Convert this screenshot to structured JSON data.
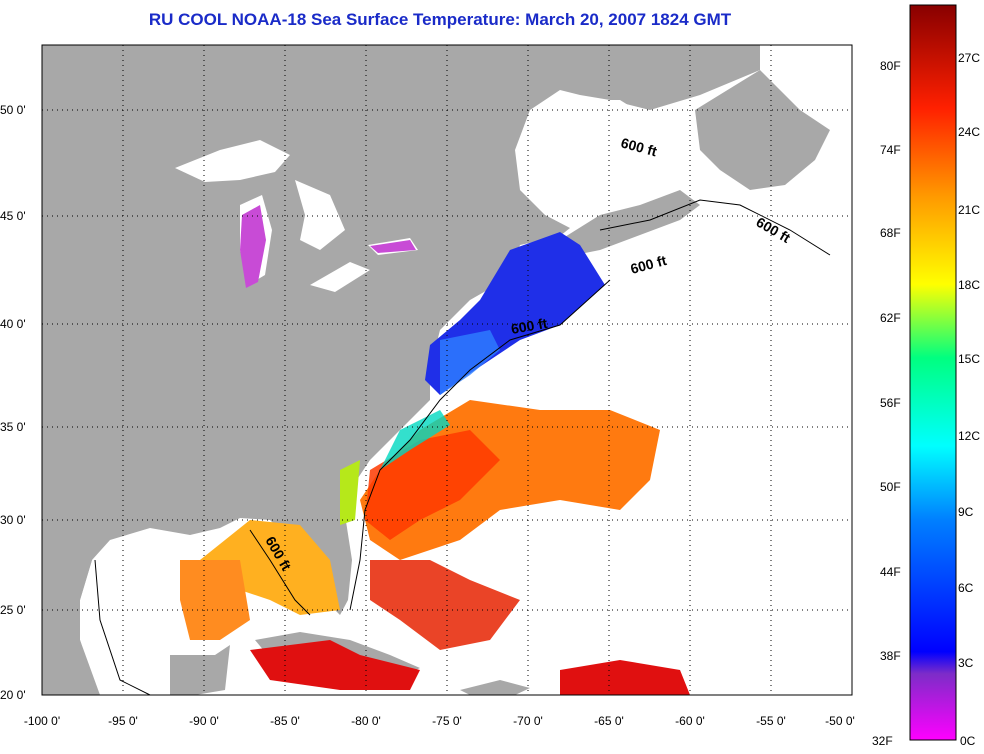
{
  "title": "RU COOL  NOAA-18  Sea Surface Temperature:  March 20, 2007 1824 GMT",
  "lat_labels": [
    "50 0'",
    "45 0'",
    "40 0'",
    "35 0'",
    "30 0'",
    "25 0'",
    "20 0'"
  ],
  "lon_labels": [
    "-100 0'",
    "-95 0'",
    "-90 0'",
    "-85 0'",
    "-80 0'",
    "-75 0'",
    "-70 0'",
    "-65 0'",
    "-60 0'",
    "-55 0'",
    "-50 0'"
  ],
  "contour_labels": [
    "600 ft",
    "600 ft",
    "600 ft",
    "600 ft",
    "600 ft"
  ],
  "colorbar": {
    "fahrenheit": [
      "80F",
      "74F",
      "68F",
      "62F",
      "56F",
      "50F",
      "44F",
      "38F",
      "32F"
    ],
    "celsius": [
      "27C",
      "24C",
      "21C",
      "18C",
      "15C",
      "12C",
      "9C",
      "6C",
      "3C",
      "0C"
    ]
  },
  "colors": {
    "land": "#a8a8a8",
    "no_data": "#ffffff",
    "title": "#1a2bc8"
  }
}
